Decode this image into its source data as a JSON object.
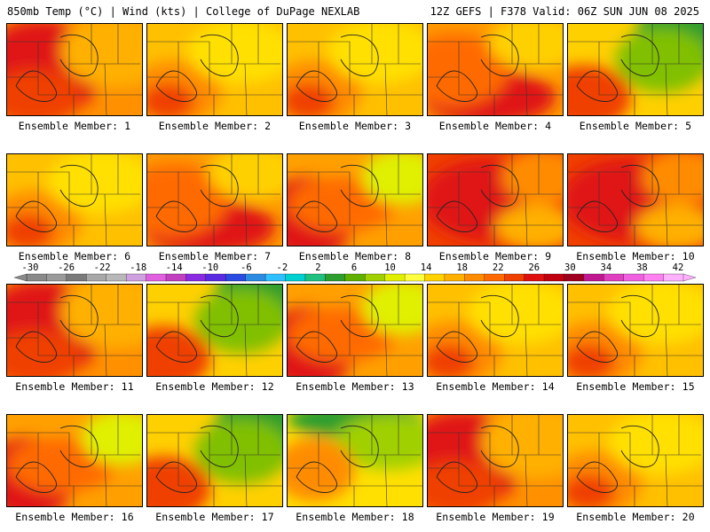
{
  "header": {
    "left": "850mb Temp (°C) | Wind (kts) | College of DuPage NEXLAB",
    "right": "12Z GEFS | F378 Valid: 06Z SUN JUN 08 2025"
  },
  "panels": [
    {
      "label": "Ensemble Member: 1",
      "dominant": "hot-west"
    },
    {
      "label": "Ensemble Member: 2",
      "dominant": "warm"
    },
    {
      "label": "Ensemble Member: 3",
      "dominant": "warm"
    },
    {
      "label": "Ensemble Member: 4",
      "dominant": "hot-south"
    },
    {
      "label": "Ensemble Member: 5",
      "dominant": "cool-northeast"
    },
    {
      "label": "Ensemble Member: 6",
      "dominant": "warm"
    },
    {
      "label": "Ensemble Member: 7",
      "dominant": "hot-south"
    },
    {
      "label": "Ensemble Member: 8",
      "dominant": "hot-southwest"
    },
    {
      "label": "Ensemble Member: 9",
      "dominant": "hot"
    },
    {
      "label": "Ensemble Member: 10",
      "dominant": "hot"
    },
    {
      "label": "Ensemble Member: 11",
      "dominant": "hot-west"
    },
    {
      "label": "Ensemble Member: 12",
      "dominant": "cool-northeast"
    },
    {
      "label": "Ensemble Member: 13",
      "dominant": "hot-southwest"
    },
    {
      "label": "Ensemble Member: 14",
      "dominant": "warm"
    },
    {
      "label": "Ensemble Member: 15",
      "dominant": "warm"
    },
    {
      "label": "Ensemble Member: 16",
      "dominant": "hot-southwest"
    },
    {
      "label": "Ensemble Member: 17",
      "dominant": "cool-northeast"
    },
    {
      "label": "Ensemble Member: 18",
      "dominant": "cool-north"
    },
    {
      "label": "Ensemble Member: 19",
      "dominant": "hot-west"
    },
    {
      "label": "Ensemble Member: 20",
      "dominant": "warm"
    }
  ],
  "colorbar": {
    "ticks": [
      "-30",
      "-26",
      "-22",
      "-18",
      "-14",
      "-10",
      "-6",
      "-2",
      "2",
      "6",
      "10",
      "14",
      "18",
      "22",
      "26",
      "30",
      "34",
      "38",
      "42"
    ],
    "colors": [
      "#8a8a8a",
      "#9a9a9a",
      "#7a7a7a",
      "#a8a8a8",
      "#b8b8b8",
      "#cfa0e0",
      "#e060e0",
      "#c040c0",
      "#8a2be2",
      "#5a2be2",
      "#2b4be2",
      "#2b8be2",
      "#30c0ff",
      "#00d0d0",
      "#20c080",
      "#2e9e2e",
      "#60b000",
      "#a0d000",
      "#e0f000",
      "#ffff40",
      "#ffd200",
      "#ffb000",
      "#ff8c00",
      "#ff6a00",
      "#f04000",
      "#e01010",
      "#c00010",
      "#a00020",
      "#c01890",
      "#e040c0",
      "#f060e0",
      "#ff80f0",
      "#ffb0ff"
    ]
  }
}
